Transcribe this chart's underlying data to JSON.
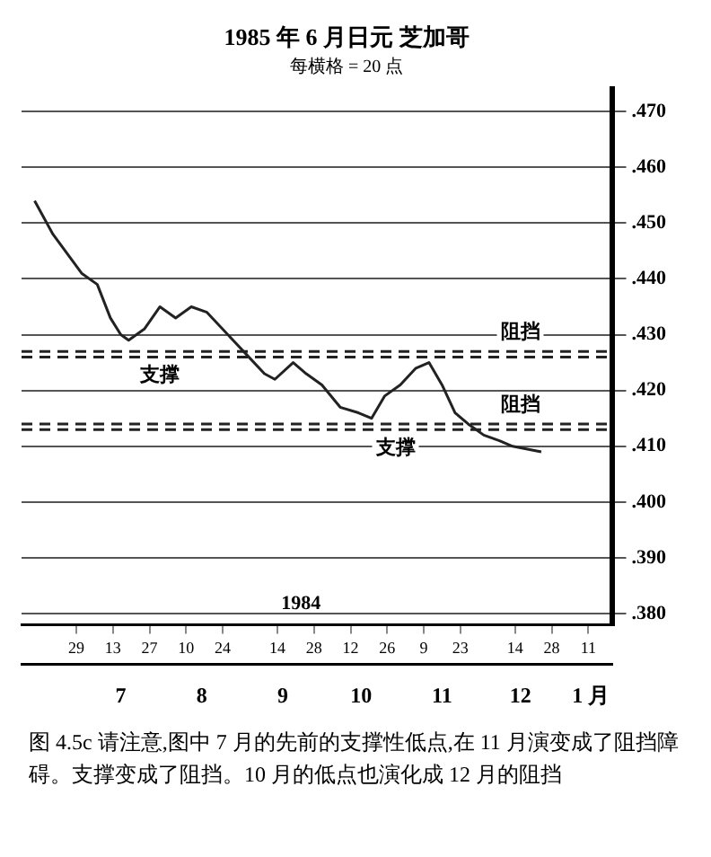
{
  "chart_data": {
    "type": "line",
    "title": "1985 年 6 月日元 芝加哥",
    "subtitle": "每横格 = 20 点",
    "x": [
      "1984-06-13",
      "1984-06-20",
      "1984-07-01",
      "1984-07-07",
      "1984-07-12",
      "1984-07-16",
      "1984-07-19",
      "1984-07-25",
      "1984-07-31",
      "1984-08-06",
      "1984-08-12",
      "1984-08-18",
      "1984-08-28",
      "1984-09-03",
      "1984-09-09",
      "1984-09-13",
      "1984-09-20",
      "1984-09-25",
      "1984-10-01",
      "1984-10-08",
      "1984-10-15",
      "1984-10-20",
      "1984-10-25",
      "1984-10-31",
      "1984-11-06",
      "1984-11-11",
      "1984-11-16",
      "1984-11-21",
      "1984-11-26",
      "1984-12-02",
      "1984-12-08",
      "1984-12-13",
      "1984-12-24"
    ],
    "series": [
      {
        "color": "#222222",
        "values": [
          0.454,
          0.448,
          0.441,
          0.439,
          0.433,
          0.43,
          0.429,
          0.431,
          0.435,
          0.433,
          0.435,
          0.434,
          0.429,
          0.426,
          0.423,
          0.422,
          0.425,
          0.423,
          0.421,
          0.417,
          0.416,
          0.415,
          0.419,
          0.421,
          0.424,
          0.425,
          0.421,
          0.416,
          0.414,
          0.412,
          0.411,
          0.41,
          0.409
        ]
      }
    ],
    "xlim": [
      "1984-06-08",
      "1985-01-20"
    ],
    "xticks": [
      {
        "value": "1984-06-29",
        "label": "29"
      },
      {
        "value": "1984-07-13",
        "label": "13"
      },
      {
        "value": "1984-07-27",
        "label": "27"
      },
      {
        "value": "1984-08-10",
        "label": "10"
      },
      {
        "value": "1984-08-24",
        "label": "24"
      },
      {
        "value": "1984-09-14",
        "label": "14"
      },
      {
        "value": "1984-09-28",
        "label": "28"
      },
      {
        "value": "1984-10-12",
        "label": "12"
      },
      {
        "value": "1984-10-26",
        "label": "26"
      },
      {
        "value": "1984-11-09",
        "label": "9"
      },
      {
        "value": "1984-11-23",
        "label": "23"
      },
      {
        "value": "1984-12-14",
        "label": "14"
      },
      {
        "value": "1984-12-28",
        "label": "28"
      },
      {
        "value": "1985-01-11",
        "label": "11"
      }
    ],
    "x2ticks": [
      {
        "value": "1984-07-16",
        "label": "7"
      },
      {
        "value": "1984-08-16",
        "label": "8"
      },
      {
        "value": "1984-09-16",
        "label": "9"
      },
      {
        "value": "1984-10-16",
        "label": "10"
      },
      {
        "value": "1984-11-16",
        "label": "11"
      },
      {
        "value": "1984-12-16",
        "label": "12"
      },
      {
        "value": "1985-01-12",
        "label": "1 月"
      }
    ],
    "x2lim": [
      "1984-06-08",
      "1985-01-20"
    ],
    "ylim": [
      0.378,
      0.474
    ],
    "yticks": [
      {
        "value": 0.38,
        "label": ".380"
      },
      {
        "value": 0.39,
        "label": ".390"
      },
      {
        "value": 0.4,
        "label": ".400"
      },
      {
        "value": 0.41,
        "label": ".410"
      },
      {
        "value": 0.42,
        "label": ".420"
      },
      {
        "value": 0.43,
        "label": ".430"
      },
      {
        "value": 0.44,
        "label": ".440"
      },
      {
        "value": 0.45,
        "label": ".450"
      },
      {
        "value": 0.46,
        "label": ".460"
      },
      {
        "value": 0.47,
        "label": ".470"
      }
    ],
    "grid": "y",
    "legend": false,
    "marker": "none",
    "line_style": "solid",
    "ref_lines": [
      {
        "axis": "y",
        "value": 0.427,
        "label": "阻挡",
        "line_style": "dashed",
        "color": "#222222"
      },
      {
        "axis": "y",
        "value": 0.414,
        "label": "阻挡",
        "line_style": "dashed",
        "color": "#222222"
      },
      {
        "axis": "y",
        "value": 0.426,
        "label": "支撑",
        "line_style": "dashed",
        "color": "#222222"
      },
      {
        "axis": "y",
        "value": 0.413,
        "label": "支撑",
        "line_style": "dashed",
        "color": "#222222"
      }
    ],
    "annotations": [
      "1984",
      "图 4.5c 请注意,图中 7 月的先前的支撑性低点,在 11 月演变成了阻挡障碍。支撑变成了阻挡。10 月的低点也演化成 12 月的阻挡"
    ]
  }
}
